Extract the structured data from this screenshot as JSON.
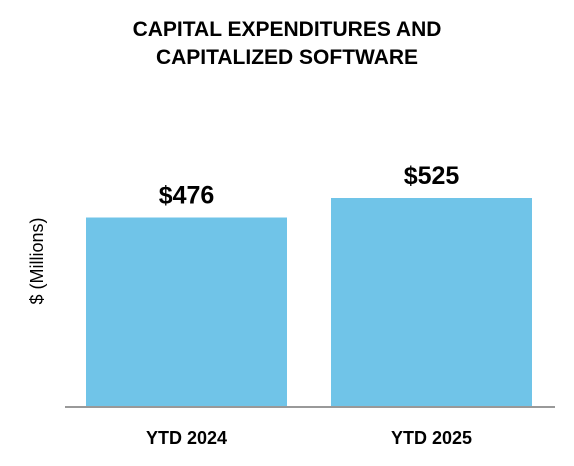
{
  "chart_data": {
    "type": "bar",
    "title_lines": [
      "CAPITAL EXPENDITURES AND",
      "CAPITALIZED SOFTWARE"
    ],
    "categories": [
      "YTD 2024",
      "YTD 2025"
    ],
    "values": [
      476,
      525
    ],
    "data_labels": [
      "$476",
      "$525"
    ],
    "xlabel": "",
    "ylabel": "$ (Millions)",
    "ylim": [
      0,
      525
    ],
    "grid": false,
    "legend": "none",
    "colors": {
      "bar": "#70c4e8",
      "axis": "#999999",
      "text": "#000000"
    }
  }
}
